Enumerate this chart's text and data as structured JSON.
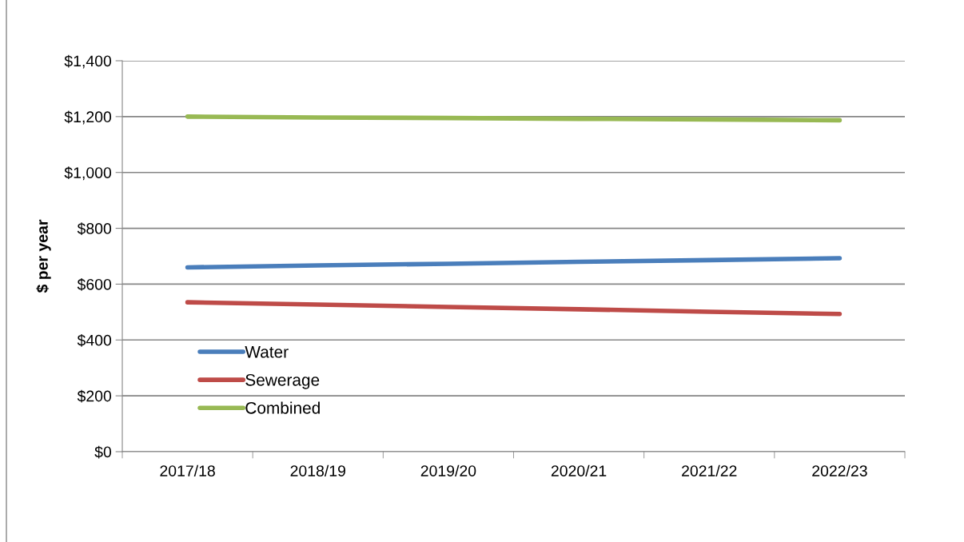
{
  "chart_data": {
    "type": "line",
    "ylabel": "$ per year",
    "categories": [
      "2017/18",
      "2018/19",
      "2019/20",
      "2020/21",
      "2021/22",
      "2022/23"
    ],
    "series": [
      {
        "name": "Water",
        "color": "#4a7ebb",
        "values": [
          660,
          667,
          673,
          680,
          686,
          693
        ]
      },
      {
        "name": "Sewerage",
        "color": "#be4b48",
        "values": [
          535,
          527,
          518,
          510,
          501,
          493
        ]
      },
      {
        "name": "Combined",
        "color": "#98b954",
        "values": [
          1200,
          1197,
          1195,
          1192,
          1190,
          1187
        ]
      }
    ],
    "ylim": [
      0,
      1400
    ],
    "yticks": [
      {
        "value": 0,
        "label": "$0"
      },
      {
        "value": 200,
        "label": "$200"
      },
      {
        "value": 400,
        "label": "$400"
      },
      {
        "value": 600,
        "label": "$600"
      },
      {
        "value": 800,
        "label": "$800"
      },
      {
        "value": 1000,
        "label": "$1,000"
      },
      {
        "value": 1200,
        "label": "$1,200"
      },
      {
        "value": 1400,
        "label": "$1,400"
      }
    ],
    "grid": "y",
    "legend": "bottom left",
    "marker": "none",
    "line_style": "solid"
  }
}
